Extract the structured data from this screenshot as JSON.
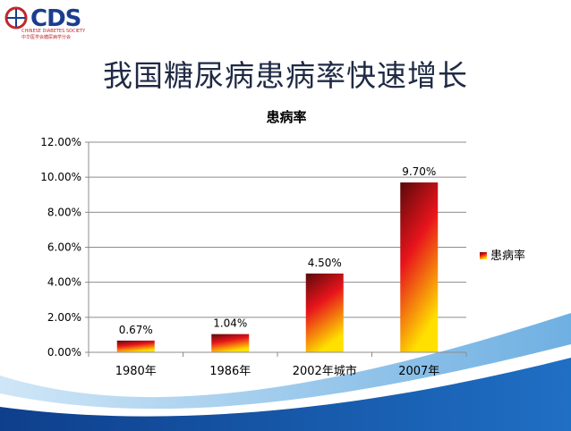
{
  "logo": {
    "letters": "CDS",
    "society_en": "CHINESE DIABETES SOCIETY",
    "society_cn": "中华医学会糖尿病学分会"
  },
  "slide": {
    "title": "我国糖尿病患病率快速增长"
  },
  "colors": {
    "bar_top": "#5a0a0a",
    "bar_mid": "#e8141c",
    "bar_bottom": "#ffe000",
    "grid": "#8c8c8c",
    "wave_dark": "#1b57a8",
    "wave_light": "#7fb6e3"
  },
  "chart_data": {
    "type": "bar",
    "title": "患病率",
    "categories": [
      "1980年",
      "1986年",
      "2002年城市",
      "2007年"
    ],
    "series": [
      {
        "name": "患病率",
        "values": [
          0.67,
          1.04,
          4.5,
          9.7
        ]
      }
    ],
    "data_labels": [
      "0.67%",
      "1.04%",
      "4.50%",
      "9.70%"
    ],
    "y_ticks": [
      {
        "value": 0,
        "label": "0.00%"
      },
      {
        "value": 2,
        "label": "2.00%"
      },
      {
        "value": 4,
        "label": "4.00%"
      },
      {
        "value": 6,
        "label": "6.00%"
      },
      {
        "value": 8,
        "label": "8.00%"
      },
      {
        "value": 10,
        "label": "10.00%"
      },
      {
        "value": 12,
        "label": "12.00%"
      }
    ],
    "ylim": [
      0,
      12
    ],
    "grid": true,
    "legend_position": "right"
  }
}
